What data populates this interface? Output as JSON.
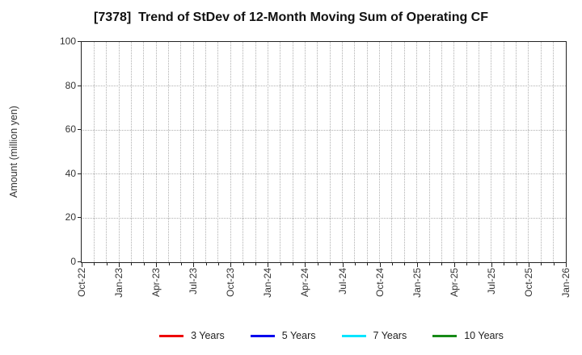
{
  "figure": {
    "background": "#ffffff"
  },
  "colors": {
    "axis": "#222222",
    "grid": "#b0b0b0",
    "text": "#333333",
    "title_text": "#111111"
  },
  "chart_data": {
    "type": "line",
    "title": "[7378]  Trend of StDev of 12-Month Moving Sum of Operating CF",
    "xlabel": "",
    "ylabel": "Amount (million yen)",
    "ylim": [
      0,
      100
    ],
    "yticks": [
      0,
      20,
      40,
      60,
      80,
      100
    ],
    "grid": true,
    "grid_style": "dotted",
    "x_start": "Oct-22",
    "x_end": "Jan-26",
    "months_total": 40,
    "x_minor_interval_months": 1,
    "x_tick_interval_months": 3,
    "x_tick_labels": [
      "Oct-22",
      "Jan-23",
      "Apr-23",
      "Jul-23",
      "Oct-23",
      "Jan-24",
      "Apr-24",
      "Jul-24",
      "Oct-24",
      "Jan-25",
      "Apr-25",
      "Jul-25",
      "Oct-25",
      "Jan-26"
    ],
    "legend_position": "bottom",
    "series": [
      {
        "name": "3 Years",
        "color": "#ee0000",
        "values": []
      },
      {
        "name": "5 Years",
        "color": "#0000ee",
        "values": []
      },
      {
        "name": "7 Years",
        "color": "#00e5ff",
        "values": []
      },
      {
        "name": "10 Years",
        "color": "#168a16",
        "values": []
      }
    ]
  }
}
